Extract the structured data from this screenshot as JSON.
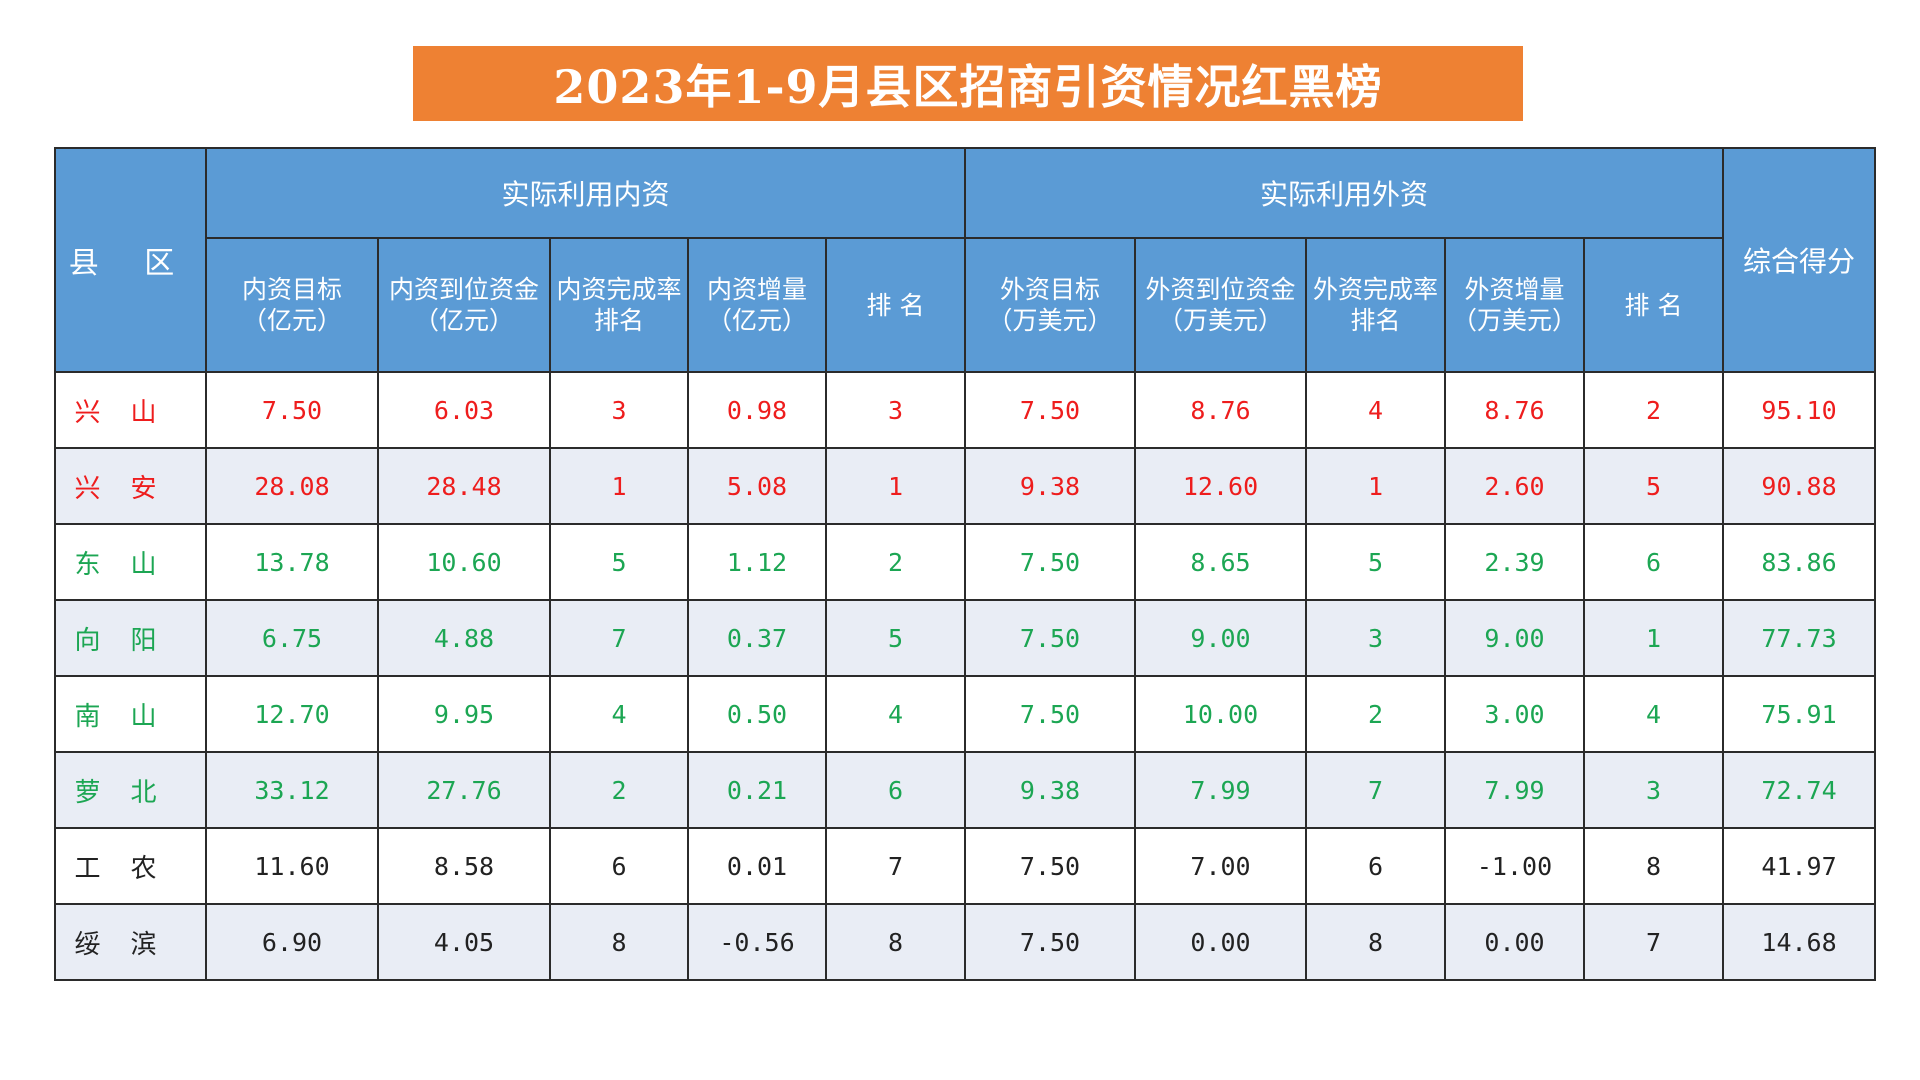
{
  "title": "2023年1-9月县区招商引资情况红黑榜",
  "header": {
    "county": "县 区",
    "domestic_group": "实际利用内资",
    "foreign_group": "实际利用外资",
    "score": "综合得分",
    "columns": [
      [
        "内资目标",
        "（亿元）"
      ],
      [
        "内资到位资金",
        "（亿元）"
      ],
      [
        "内资完成率",
        "排名"
      ],
      [
        "内资增量",
        "（亿元）"
      ],
      [
        "排 名"
      ],
      [
        "外资目标",
        "（万美元）"
      ],
      [
        "外资到位资金",
        "（万美元）"
      ],
      [
        "外资完成率",
        "排名"
      ],
      [
        "外资增量",
        "（万美元）"
      ],
      [
        "排 名"
      ]
    ]
  },
  "colors": {
    "red": "#ee1d1d",
    "green": "#1ca653",
    "black": "#222222",
    "header_bg": "#5b9bd5",
    "title_bg": "#ee8133"
  },
  "rows": [
    {
      "county": "兴山",
      "color": "red",
      "values": [
        "7.50",
        "6.03",
        "3",
        "0.98",
        "3",
        "7.50",
        "8.76",
        "4",
        "8.76",
        "2",
        "95.10"
      ]
    },
    {
      "county": "兴安",
      "color": "red",
      "values": [
        "28.08",
        "28.48",
        "1",
        "5.08",
        "1",
        "9.38",
        "12.60",
        "1",
        "2.60",
        "5",
        "90.88"
      ]
    },
    {
      "county": "东山",
      "color": "green",
      "values": [
        "13.78",
        "10.60",
        "5",
        "1.12",
        "2",
        "7.50",
        "8.65",
        "5",
        "2.39",
        "6",
        "83.86"
      ]
    },
    {
      "county": "向阳",
      "color": "green",
      "values": [
        "6.75",
        "4.88",
        "7",
        "0.37",
        "5",
        "7.50",
        "9.00",
        "3",
        "9.00",
        "1",
        "77.73"
      ]
    },
    {
      "county": "南山",
      "color": "green",
      "values": [
        "12.70",
        "9.95",
        "4",
        "0.50",
        "4",
        "7.50",
        "10.00",
        "2",
        "3.00",
        "4",
        "75.91"
      ]
    },
    {
      "county": "萝北",
      "color": "green",
      "values": [
        "33.12",
        "27.76",
        "2",
        "0.21",
        "6",
        "9.38",
        "7.99",
        "7",
        "7.99",
        "3",
        "72.74"
      ]
    },
    {
      "county": "工农",
      "color": "black",
      "values": [
        "11.60",
        "8.58",
        "6",
        "0.01",
        "7",
        "7.50",
        "7.00",
        "6",
        "-1.00",
        "8",
        "41.97"
      ]
    },
    {
      "county": "绥滨",
      "color": "black",
      "values": [
        "6.90",
        "4.05",
        "8",
        "-0.56",
        "8",
        "7.50",
        "0.00",
        "8",
        "0.00",
        "7",
        "14.68"
      ]
    }
  ]
}
